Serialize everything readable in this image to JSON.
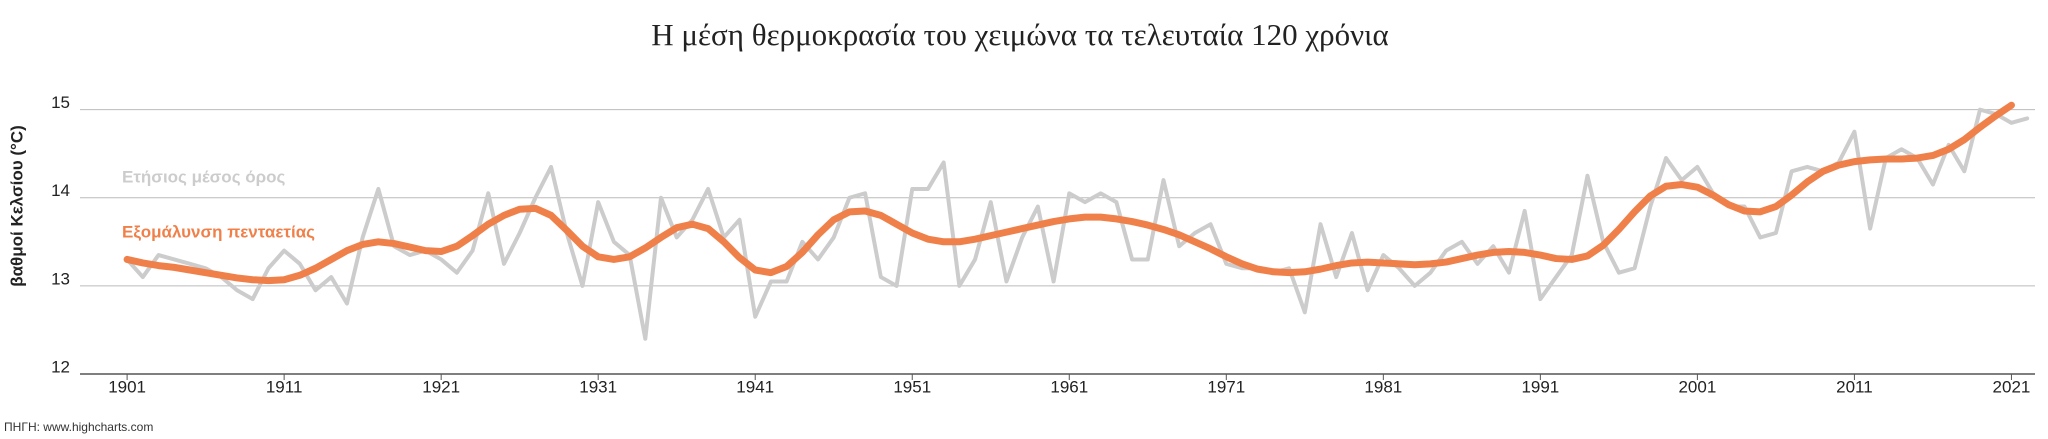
{
  "chart_data": {
    "type": "line",
    "title": "Η μέση θερμοκρασία του χειμώνα τα τελευταία 120 χρόνια",
    "y_label": "βαθμοί Κελσίου (°C)",
    "source": "ΠΗΓΗ: www.highcharts.com",
    "xlim": [
      1898,
      2022.5
    ],
    "ylim": [
      12,
      15.2
    ],
    "xticks": [
      1901,
      1911,
      1921,
      1931,
      1941,
      1951,
      1961,
      1971,
      1981,
      1991,
      2001,
      2011,
      2021
    ],
    "yticks": [
      12,
      13,
      14,
      15
    ],
    "grid": true,
    "x": [
      1901,
      1902,
      1903,
      1904,
      1905,
      1906,
      1907,
      1908,
      1909,
      1910,
      1911,
      1912,
      1913,
      1914,
      1915,
      1916,
      1917,
      1918,
      1919,
      1920,
      1921,
      1922,
      1923,
      1924,
      1925,
      1926,
      1927,
      1928,
      1929,
      1930,
      1931,
      1932,
      1933,
      1934,
      1935,
      1936,
      1937,
      1938,
      1939,
      1940,
      1941,
      1942,
      1943,
      1944,
      1945,
      1946,
      1947,
      1948,
      1949,
      1950,
      1951,
      1952,
      1953,
      1954,
      1955,
      1956,
      1957,
      1958,
      1959,
      1960,
      1961,
      1962,
      1963,
      1964,
      1965,
      1966,
      1967,
      1968,
      1969,
      1970,
      1971,
      1972,
      1973,
      1974,
      1975,
      1976,
      1977,
      1978,
      1979,
      1980,
      1981,
      1982,
      1983,
      1984,
      1985,
      1986,
      1987,
      1988,
      1989,
      1990,
      1991,
      1992,
      1993,
      1994,
      1995,
      1996,
      1997,
      1998,
      1999,
      2000,
      2001,
      2002,
      2003,
      2004,
      2005,
      2006,
      2007,
      2008,
      2009,
      2010,
      2011,
      2012,
      2013,
      2014,
      2015,
      2016,
      2017,
      2018,
      2019,
      2020,
      2021,
      2022
    ],
    "series": [
      {
        "name": "Ετήσιος μέσος όρος",
        "color": "#cccccc",
        "width": 4,
        "values": [
          13.3,
          13.1,
          13.35,
          13.3,
          13.25,
          13.2,
          13.1,
          12.95,
          12.85,
          13.2,
          13.4,
          13.25,
          12.95,
          13.1,
          12.8,
          13.55,
          14.1,
          13.45,
          13.35,
          13.4,
          13.3,
          13.15,
          13.4,
          14.05,
          13.25,
          13.6,
          14.0,
          14.35,
          13.6,
          13.0,
          13.95,
          13.5,
          13.35,
          12.4,
          14.0,
          13.55,
          13.75,
          14.1,
          13.55,
          13.75,
          12.65,
          13.05,
          13.05,
          13.5,
          13.3,
          13.55,
          14.0,
          14.05,
          13.1,
          13.0,
          14.1,
          14.1,
          14.4,
          13.0,
          13.3,
          13.95,
          13.05,
          13.55,
          13.9,
          13.05,
          14.05,
          13.95,
          14.05,
          13.95,
          13.3,
          13.3,
          14.2,
          13.45,
          13.6,
          13.7,
          13.25,
          13.2,
          13.2,
          13.15,
          13.2,
          12.7,
          13.7,
          13.1,
          13.6,
          12.95,
          13.35,
          13.2,
          13.0,
          13.15,
          13.4,
          13.5,
          13.25,
          13.45,
          13.15,
          13.85,
          12.85,
          13.1,
          13.35,
          14.25,
          13.5,
          13.15,
          13.2,
          13.9,
          14.45,
          14.2,
          14.35,
          14.05,
          13.9,
          13.9,
          13.55,
          13.6,
          14.3,
          14.35,
          14.3,
          14.4,
          14.75,
          13.65,
          14.45,
          14.55,
          14.45,
          14.15,
          14.6,
          14.3,
          15.0,
          14.95,
          14.85,
          14.9
        ]
      },
      {
        "name": "Εξομάλυνση πενταετίας",
        "color": "#f0804a",
        "width": 7,
        "values": [
          13.3,
          13.26,
          13.23,
          13.21,
          13.18,
          13.15,
          13.12,
          13.09,
          13.07,
          13.06,
          13.07,
          13.12,
          13.2,
          13.3,
          13.4,
          13.47,
          13.5,
          13.48,
          13.44,
          13.4,
          13.39,
          13.45,
          13.57,
          13.7,
          13.8,
          13.87,
          13.88,
          13.8,
          13.63,
          13.45,
          13.33,
          13.3,
          13.33,
          13.43,
          13.55,
          13.66,
          13.7,
          13.65,
          13.5,
          13.32,
          13.18,
          13.15,
          13.22,
          13.38,
          13.58,
          13.75,
          13.84,
          13.85,
          13.8,
          13.7,
          13.6,
          13.53,
          13.5,
          13.5,
          13.53,
          13.57,
          13.61,
          13.65,
          13.69,
          13.73,
          13.76,
          13.78,
          13.78,
          13.76,
          13.73,
          13.69,
          13.64,
          13.58,
          13.5,
          13.42,
          13.33,
          13.25,
          13.19,
          13.16,
          13.15,
          13.16,
          13.19,
          13.23,
          13.26,
          13.27,
          13.26,
          13.25,
          13.24,
          13.25,
          13.27,
          13.31,
          13.35,
          13.38,
          13.39,
          13.38,
          13.35,
          13.31,
          13.3,
          13.34,
          13.46,
          13.64,
          13.84,
          14.02,
          14.13,
          14.15,
          14.12,
          14.03,
          13.92,
          13.85,
          13.84,
          13.9,
          14.03,
          14.18,
          14.3,
          14.37,
          14.41,
          14.43,
          14.44,
          14.44,
          14.45,
          14.48,
          14.55,
          14.66,
          14.8,
          14.93,
          15.05,
          null
        ]
      }
    ]
  }
}
